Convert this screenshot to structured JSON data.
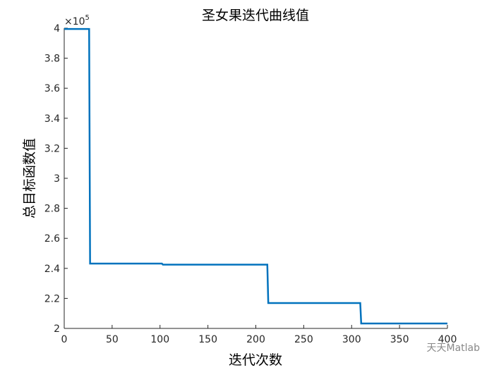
{
  "chart_data": {
    "type": "line",
    "title": "圣女果迭代曲线值",
    "xlabel": "迭代次数",
    "ylabel": "总目标函数值",
    "y_multiplier": {
      "base": "×10",
      "exponent": "5"
    },
    "watermark": "天天Matlab",
    "x": [
      0,
      26,
      27,
      102,
      103,
      212,
      213,
      309,
      310,
      400
    ],
    "series": [
      {
        "color": "#0072bd",
        "values": [
          3.995,
          3.995,
          2.432,
          2.432,
          2.425,
          2.425,
          2.169,
          2.169,
          2.033,
          2.033
        ]
      }
    ],
    "xlim": [
      0,
      400
    ],
    "xticks": [
      0,
      50,
      100,
      150,
      200,
      250,
      300,
      350,
      400
    ],
    "ylim": [
      2,
      4
    ],
    "yticks": [
      2,
      2.2,
      2.4,
      2.6,
      2.8,
      3,
      3.2,
      3.4,
      3.6,
      3.8,
      4
    ],
    "grid": false
  }
}
